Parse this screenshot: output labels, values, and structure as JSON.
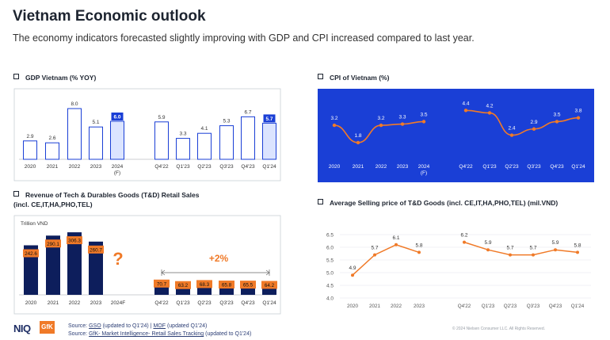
{
  "header": {
    "title": "Vietnam Economic outlook",
    "subtitle": "The economy indicators forecasted slightly improving with GDP and CPI increased compared to last year."
  },
  "colors": {
    "navy": "#0d1e5c",
    "blue": "#1a3fd6",
    "orange": "#f07a28",
    "gray": "#9aa0a8"
  },
  "chart_data": [
    {
      "id": "gdp",
      "type": "bar",
      "title": "GDP Vietnam (% YOY)",
      "categories": [
        "2020",
        "2021",
        "2022",
        "2023",
        "2024\n(F)",
        "Q4'22",
        "Q1'23",
        "Q2'23",
        "Q3'23",
        "Q4'23",
        "Q1'24"
      ],
      "values": [
        2.9,
        2.6,
        8.0,
        5.1,
        6.0,
        5.9,
        3.3,
        4.1,
        5.3,
        6.7,
        5.7
      ],
      "highlighted": [
        "2024\n(F)",
        "Q1'24"
      ],
      "ylim": [
        0,
        9
      ]
    },
    {
      "id": "cpi",
      "type": "line",
      "title": "CPI of Vietnam (%)",
      "series": [
        {
          "name": "Annual",
          "categories": [
            "2020",
            "2021",
            "2022",
            "2023",
            "2024\n(F)"
          ],
          "values": [
            3.2,
            1.8,
            3.2,
            3.3,
            3.5
          ]
        },
        {
          "name": "Quarterly",
          "categories": [
            "Q4'22",
            "Q1'23",
            "Q2'23",
            "Q3'23",
            "Q4'23",
            "Q1'24"
          ],
          "values": [
            4.4,
            4.2,
            2.4,
            2.9,
            3.5,
            3.8
          ]
        }
      ],
      "ylim": [
        0,
        5
      ]
    },
    {
      "id": "revenue",
      "type": "bar",
      "title": "Revenue of Tech & Durables Goods (T&D) Retail Sales",
      "subtitle": "(incl. CE,IT,HA,PHO,TEL)",
      "unit_label": "Trillion VND",
      "categories": [
        "2020",
        "2021",
        "2022",
        "2023",
        "2024F",
        "Q4'22",
        "Q1'23",
        "Q2'23",
        "Q3'23",
        "Q4'23",
        "Q1'24"
      ],
      "values": [
        242.6,
        290.1,
        306.3,
        260.7,
        null,
        70.7,
        63.2,
        68.3,
        65.8,
        65.5,
        64.2
      ],
      "value_labels": [
        "242.6",
        "290.1",
        "306.3",
        "260.7",
        "",
        "70.7",
        "63.2",
        "68.3",
        "65.8",
        "65.5",
        "64.2"
      ],
      "forecast_marker": "?",
      "growth_annotation": "+2%",
      "ylim": [
        0,
        330
      ]
    },
    {
      "id": "asp",
      "type": "line",
      "title": "Average Selling price of T&D Goods (incl. CE,IT,HA,PHO,TEL) (mil.VND)",
      "series": [
        {
          "name": "Annual",
          "categories": [
            "2020",
            "2021",
            "2022",
            "2023"
          ],
          "values": [
            4.9,
            5.7,
            6.1,
            5.8
          ]
        },
        {
          "name": "Quarterly",
          "categories": [
            "Q4'22",
            "Q1'23",
            "Q2'23",
            "Q3'23",
            "Q4'23",
            "Q1'24"
          ],
          "values": [
            6.2,
            5.9,
            5.7,
            5.7,
            5.9,
            5.8
          ]
        }
      ],
      "yticks": [
        "4.0",
        "4.5",
        "5.0",
        "5.5",
        "6.0",
        "6.5"
      ],
      "ylim": [
        4.0,
        6.5
      ]
    }
  ],
  "footer": {
    "logo_niq": "NIQ",
    "logo_gfk": "GfK",
    "src1_prefix": "Source: ",
    "src1_gso": "GSO",
    "src1_mid": " (updated to Q1'24) | ",
    "src1_mof": "MOF",
    "src1_suffix": " (updated Q1'24)",
    "src2_prefix": "Source: ",
    "src2_link": "GfK- Market Intelligence- Retail Sales Tracking",
    "src2_suffix": " (updated to Q1'24)",
    "copyright": "© 2024 Nielsen Consumer LLC. All Rights Reserved."
  }
}
